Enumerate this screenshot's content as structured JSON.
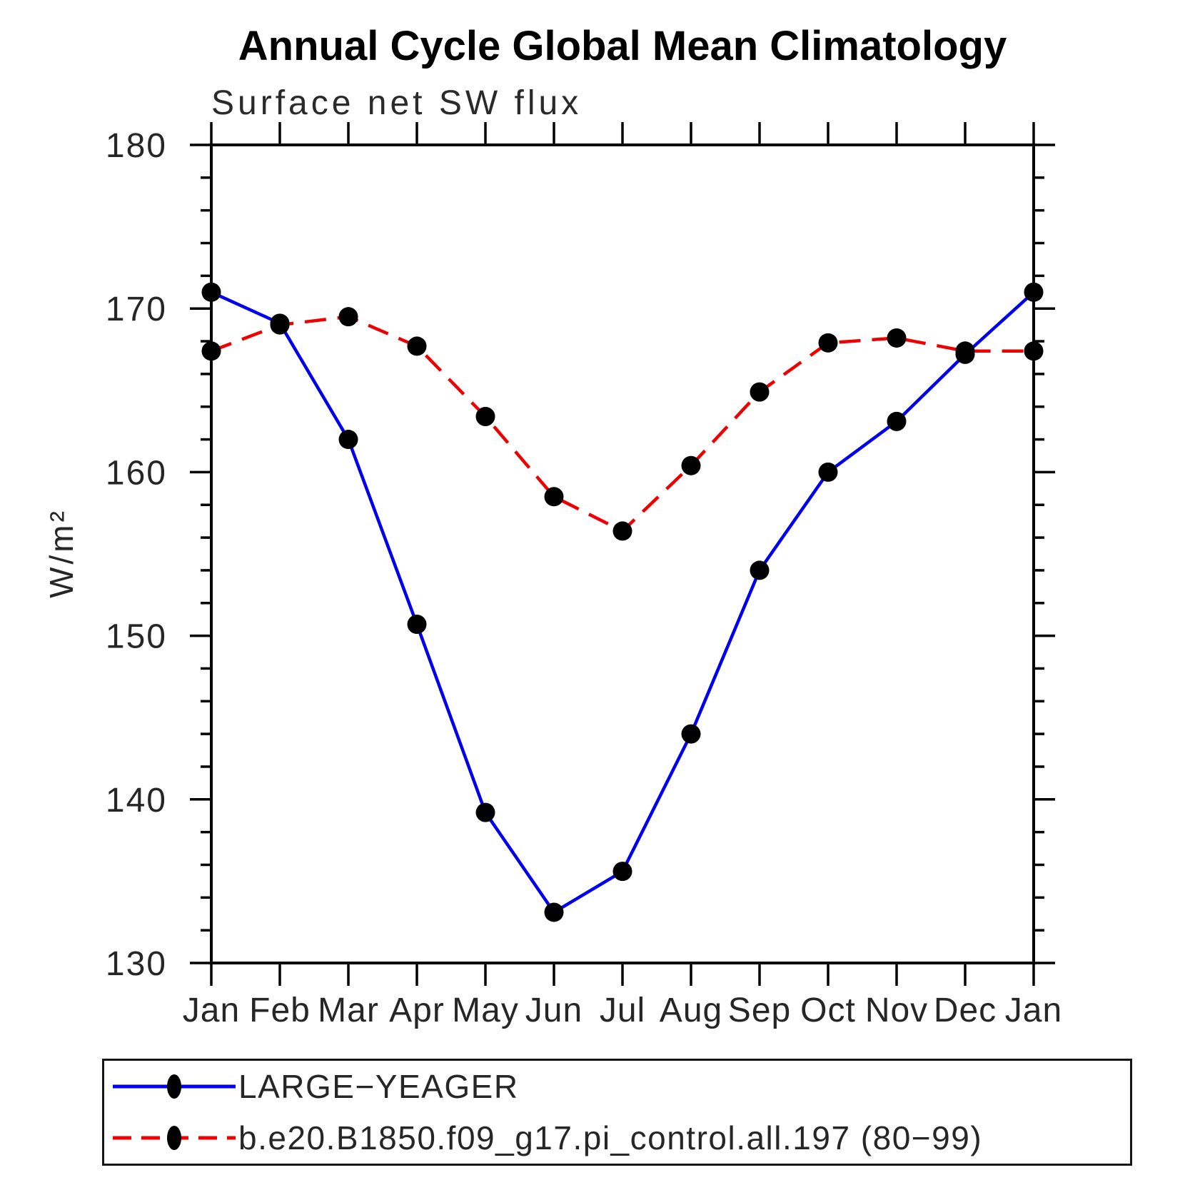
{
  "title": "Annual Cycle Global Mean Climatology",
  "subtitle": "Surface net SW flux",
  "y_axis": {
    "label": "W/m²",
    "min": 130,
    "max": 180,
    "major_step": 10,
    "minor_step": 2,
    "tick_labels": [
      "130",
      "140",
      "150",
      "160",
      "170",
      "180"
    ]
  },
  "x_axis": {
    "tick_labels": [
      "Jan",
      "Feb",
      "Mar",
      "Apr",
      "May",
      "Jun",
      "Jul",
      "Aug",
      "Sep",
      "Oct",
      "Nov",
      "Dec",
      "Jan"
    ]
  },
  "chart_data": {
    "type": "line",
    "title": "Annual Cycle Global Mean Climatology",
    "subtitle": "Surface net SW flux",
    "ylabel": "W/m²",
    "ylim": [
      130,
      180
    ],
    "grid": false,
    "legend_position": "bottom",
    "categories": [
      "Jan",
      "Feb",
      "Mar",
      "Apr",
      "May",
      "Jun",
      "Jul",
      "Aug",
      "Sep",
      "Oct",
      "Nov",
      "Dec",
      "Jan"
    ],
    "series": [
      {
        "name": "LARGE−YEAGER",
        "color": "#0000ee",
        "style": "solid",
        "marker": "circle",
        "marker_color": "#000000",
        "values": [
          171.0,
          169.1,
          162.0,
          150.7,
          139.2,
          133.1,
          135.6,
          144.0,
          154.0,
          160.0,
          163.1,
          167.2,
          171.0
        ]
      },
      {
        "name": "b.e20.B1850.f09_g17.pi_control.all.197 (80−99)",
        "color": "#ee0000",
        "style": "dashed",
        "marker": "circle",
        "marker_color": "#000000",
        "values": [
          167.4,
          169.0,
          169.5,
          167.7,
          163.4,
          158.5,
          156.4,
          160.4,
          164.9,
          167.9,
          168.2,
          167.4,
          167.4
        ]
      }
    ]
  },
  "legend": {
    "items": [
      {
        "label": "LARGE−YEAGER"
      },
      {
        "label": "b.e20.B1850.f09_g17.pi_control.all.197 (80−99)"
      }
    ]
  }
}
